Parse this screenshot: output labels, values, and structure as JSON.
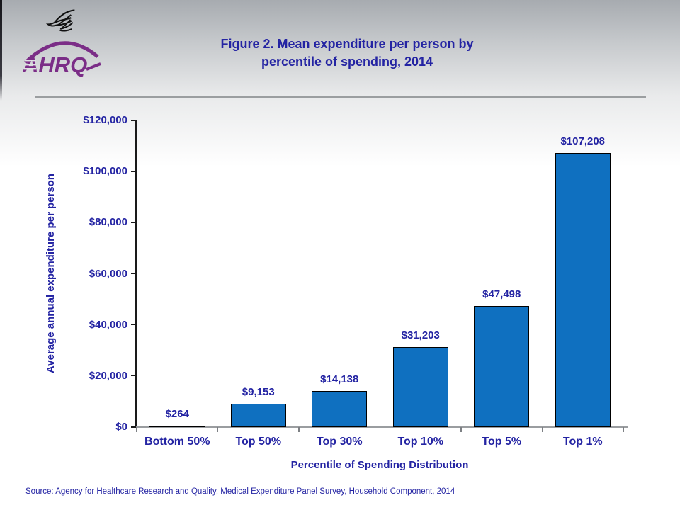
{
  "slide": {
    "title_lines": [
      "Figure 2. Mean expenditure per person by",
      "percentile of spending, 2014"
    ],
    "source": "Source: Agency for Healthcare Research and Quality, Medical Expenditure Panel Survey,  Household Component, 2014",
    "logo_text": "AHRQ"
  },
  "colors": {
    "navy_text": "#2424A3",
    "bar_fill": "#0F70C0",
    "bar_border": "#000000",
    "logo_purple": "#7B2D87",
    "divider_gray": "#9B9EA0"
  },
  "chart_data": {
    "type": "bar",
    "title": "Figure 2. Mean expenditure per person by percentile of spending, 2014",
    "categories": [
      "Bottom 50%",
      "Top 50%",
      "Top 30%",
      "Top 10%",
      "Top 5%",
      "Top 1%"
    ],
    "values": [
      264,
      9153,
      14138,
      31203,
      47498,
      107208
    ],
    "data_labels": [
      "$264",
      "$9,153",
      "$14,138",
      "$31,203",
      "$47,498",
      "$107,208"
    ],
    "xlabel": "Percentile of Spending Distribution",
    "ylabel": "Average annual expenditure per person",
    "ylim": [
      0,
      120000
    ],
    "ytick_interval": 20000,
    "ytick_labels": [
      "$0",
      "$20,000",
      "$40,000",
      "$60,000",
      "$80,000",
      "$100,000",
      "$120,000"
    ],
    "legend": "none",
    "grid": false
  }
}
